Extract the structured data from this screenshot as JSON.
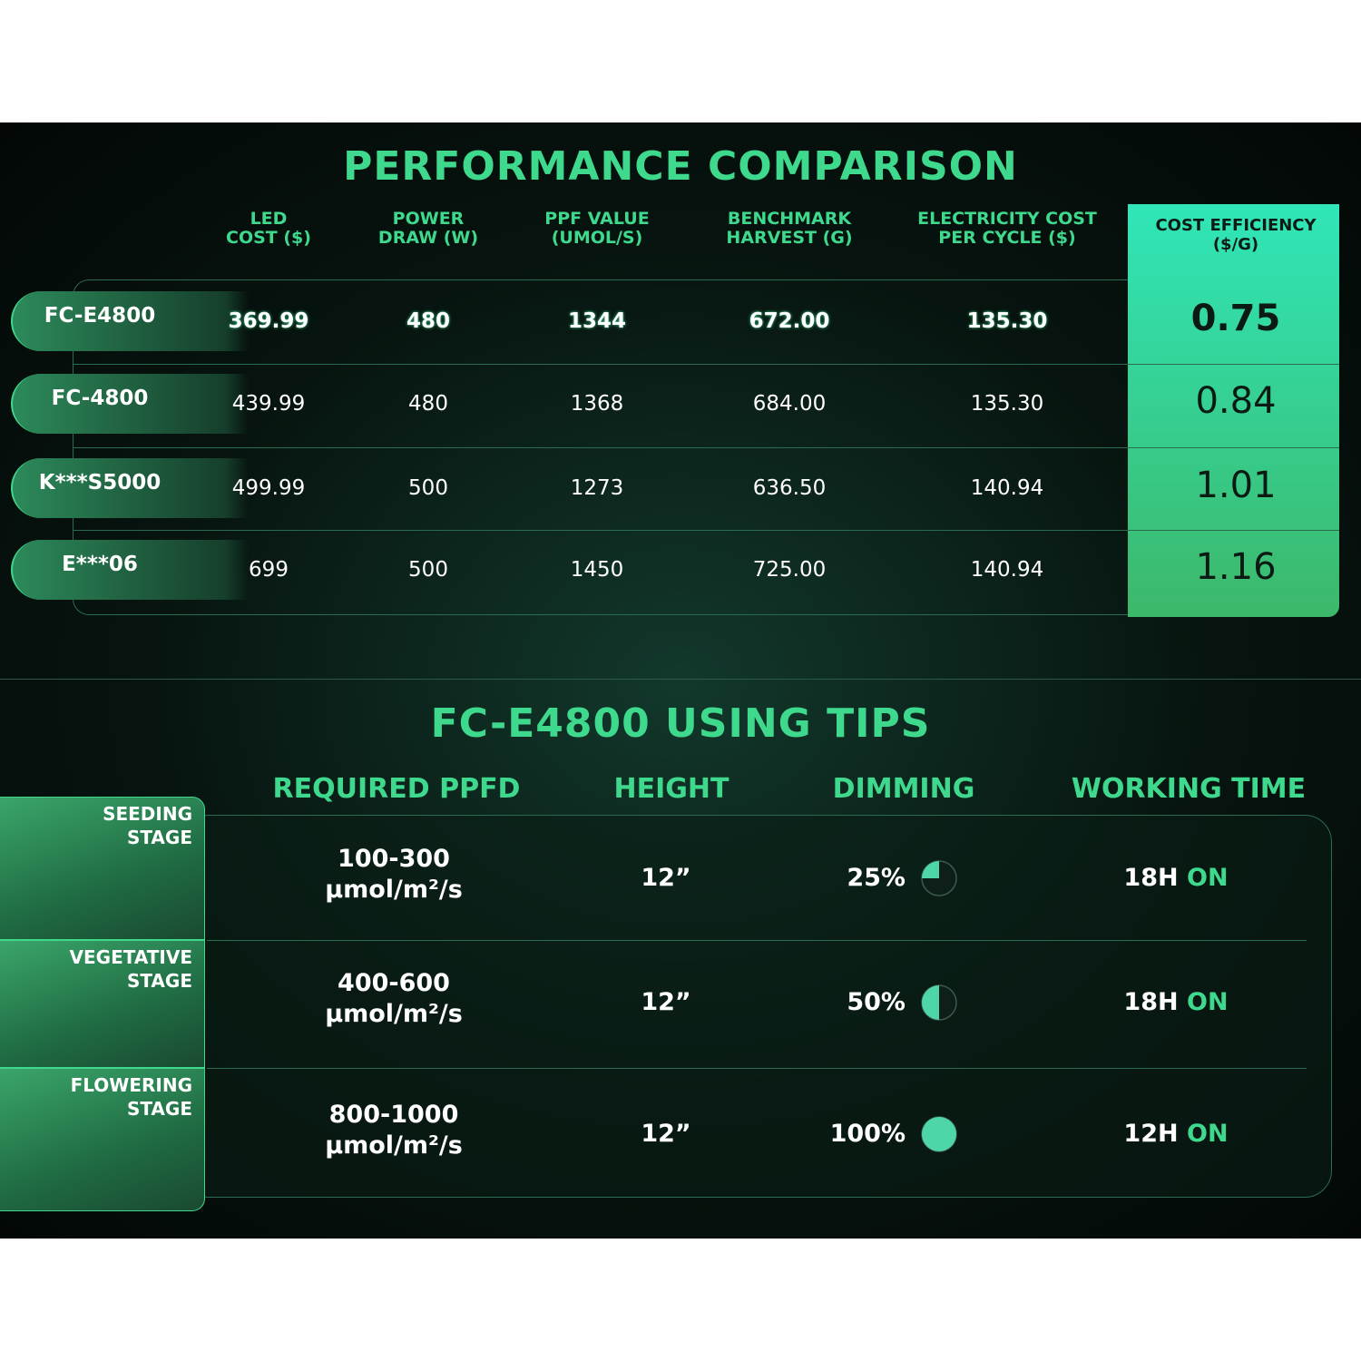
{
  "comparison": {
    "title": "PERFORMANCE COMPARISON",
    "columns": [
      [
        "LED",
        "COST ($)"
      ],
      [
        "POWER",
        "DRAW (W)"
      ],
      [
        "PPF VALUE",
        "(UMOL/S)"
      ],
      [
        "BENCHMARK",
        "HARVEST (G)"
      ],
      [
        "ELECTRICITY COST",
        "PER CYCLE ($)"
      ],
      [
        "COST EFFICIENCY",
        "($/G)"
      ]
    ],
    "rows": [
      {
        "model": "FC-E4800",
        "values": [
          "369.99",
          "480",
          "1344",
          "672.00",
          "135.30",
          "0.75"
        ]
      },
      {
        "model": "FC-4800",
        "values": [
          "439.99",
          "480",
          "1368",
          "684.00",
          "135.30",
          "0.84"
        ]
      },
      {
        "model": "K***S5000",
        "values": [
          "499.99",
          "500",
          "1273",
          "636.50",
          "140.94",
          "1.01"
        ]
      },
      {
        "model": "E***06",
        "values": [
          "699",
          "500",
          "1450",
          "725.00",
          "140.94",
          "1.16"
        ]
      }
    ]
  },
  "tips": {
    "title": "FC-E4800 USING TIPS",
    "columns": [
      "REQUIRED PPFD",
      "HEIGHT",
      "DIMMING",
      "WORKING TIME"
    ],
    "rows": [
      {
        "stage": [
          "SEEDING",
          "STAGE"
        ],
        "ppfd": [
          "100-300",
          "µmol/m²/s"
        ],
        "height": "12”",
        "dimming": {
          "value": 25,
          "label": "25%"
        },
        "working_time": {
          "hours": "18H",
          "state": "ON"
        }
      },
      {
        "stage": [
          "VEGETATIVE",
          "STAGE"
        ],
        "ppfd": [
          "400-600",
          "µmol/m²/s"
        ],
        "height": "12”",
        "dimming": {
          "value": 50,
          "label": "50%"
        },
        "working_time": {
          "hours": "18H",
          "state": "ON"
        }
      },
      {
        "stage": [
          "FLOWERING",
          "STAGE"
        ],
        "ppfd": [
          "800-1000",
          "µmol/m²/s"
        ],
        "height": "12”",
        "dimming": {
          "value": 100,
          "label": "100%"
        },
        "working_time": {
          "hours": "12H",
          "state": "ON"
        }
      }
    ]
  }
}
